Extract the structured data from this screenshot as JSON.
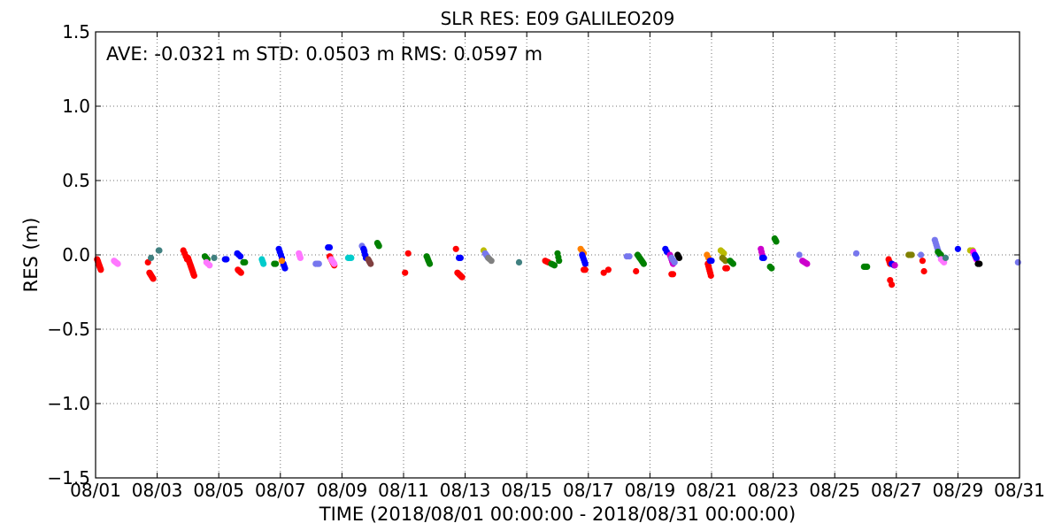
{
  "chart_data": {
    "type": "scatter",
    "title": "SLR RES: E09 GALILEO209",
    "stats_text": "AVE: -0.0321 m STD: 0.0503 m RMS: 0.0597 m",
    "xlabel": "TIME  (2018/08/01 00:00:00 - 2018/08/31 00:00:00)",
    "ylabel": "RES (m)",
    "xlim": [
      0,
      30
    ],
    "ylim": [
      -1.5,
      1.5
    ],
    "grid": true,
    "x_unit": "days",
    "x_ticks": [
      0,
      2,
      4,
      6,
      8,
      10,
      12,
      14,
      16,
      18,
      20,
      22,
      24,
      26,
      28,
      30
    ],
    "x_tick_labels": [
      "08/01",
      "08/03",
      "08/05",
      "08/07",
      "08/09",
      "08/11",
      "08/13",
      "08/15",
      "08/17",
      "08/19",
      "08/21",
      "08/23",
      "08/25",
      "08/27",
      "08/29",
      "08/31"
    ],
    "y_ticks": [
      -1.5,
      -1.0,
      -0.5,
      0.0,
      0.5,
      1.0,
      1.5
    ],
    "y_tick_labels": [
      "−1.5",
      "−1.0",
      "−0.5",
      "0.0",
      "0.5",
      "1.0",
      "1.5"
    ],
    "clusters": [
      {
        "x": 0.05,
        "dx": 0.12,
        "y": -0.03,
        "y2": -0.1,
        "n": 10,
        "color": "#ff0000"
      },
      {
        "x": 0.6,
        "dx": 0.12,
        "y": -0.04,
        "y2": -0.06,
        "n": 5,
        "color": "#ff77ff"
      },
      {
        "x": 1.75,
        "dx": 0.12,
        "y": -0.12,
        "y2": -0.16,
        "n": 8,
        "color": "#ff0000"
      },
      {
        "x": 1.7,
        "dx": 0.02,
        "y": -0.05,
        "n": 1,
        "color": "#ff0000"
      },
      {
        "x": 1.8,
        "dx": 0.02,
        "y": -0.02,
        "n": 1,
        "color": "#408080"
      },
      {
        "x": 2.05,
        "dx": 0.02,
        "y": 0.03,
        "n": 2,
        "color": "#408080"
      },
      {
        "x": 2.85,
        "dx": 0.12,
        "y": 0.03,
        "y2": -0.03,
        "n": 4,
        "color": "#ff0000"
      },
      {
        "x": 3.0,
        "dx": 0.2,
        "y": -0.02,
        "y2": -0.14,
        "n": 14,
        "color": "#ff0000"
      },
      {
        "x": 3.55,
        "dx": 0.08,
        "y": -0.01,
        "y2": -0.03,
        "n": 3,
        "color": "#008000"
      },
      {
        "x": 3.6,
        "dx": 0.1,
        "y": -0.05,
        "y2": -0.07,
        "n": 3,
        "color": "#ff77ff"
      },
      {
        "x": 3.85,
        "dx": 0.05,
        "y": -0.02,
        "n": 1,
        "color": "#408080"
      },
      {
        "x": 4.2,
        "dx": 0.05,
        "y": -0.03,
        "n": 2,
        "color": "#0000ff"
      },
      {
        "x": 4.6,
        "dx": 0.1,
        "y": 0.01,
        "y2": -0.01,
        "n": 3,
        "color": "#0000ff"
      },
      {
        "x": 4.62,
        "dx": 0.1,
        "y": -0.1,
        "y2": -0.12,
        "n": 4,
        "color": "#ff0000"
      },
      {
        "x": 4.8,
        "dx": 0.05,
        "y": -0.05,
        "n": 2,
        "color": "#008000"
      },
      {
        "x": 5.4,
        "dx": 0.05,
        "y": -0.03,
        "y2": -0.06,
        "n": 3,
        "color": "#00cccc"
      },
      {
        "x": 5.8,
        "dx": 0.05,
        "y": -0.06,
        "n": 2,
        "color": "#008000"
      },
      {
        "x": 5.95,
        "dx": 0.1,
        "y": 0.04,
        "y2": -0.02,
        "n": 4,
        "color": "#0000ff"
      },
      {
        "x": 6.1,
        "dx": 0.05,
        "y": -0.06,
        "y2": -0.09,
        "n": 3,
        "color": "#0000ff"
      },
      {
        "x": 6.05,
        "dx": 0.05,
        "y": -0.04,
        "n": 1,
        "color": "#ff8000"
      },
      {
        "x": 6.6,
        "dx": 0.05,
        "y": 0.01,
        "y2": -0.02,
        "n": 4,
        "color": "#ff77ff"
      },
      {
        "x": 7.15,
        "dx": 0.1,
        "y": -0.06,
        "n": 3,
        "color": "#7777ee"
      },
      {
        "x": 7.55,
        "dx": 0.05,
        "y": 0.05,
        "n": 2,
        "color": "#0000ff"
      },
      {
        "x": 7.6,
        "dx": 0.15,
        "y": -0.01,
        "y2": -0.07,
        "n": 8,
        "color": "#ff0000"
      },
      {
        "x": 7.65,
        "dx": 0.1,
        "y": -0.03,
        "y2": -0.06,
        "n": 5,
        "color": "#ff77ff"
      },
      {
        "x": 8.2,
        "dx": 0.1,
        "y": -0.02,
        "n": 3,
        "color": "#00cccc"
      },
      {
        "x": 8.65,
        "dx": 0.08,
        "y": 0.06,
        "y2": 0.03,
        "n": 3,
        "color": "#7777ee"
      },
      {
        "x": 8.7,
        "dx": 0.08,
        "y": 0.04,
        "y2": -0.02,
        "n": 4,
        "color": "#0000ff"
      },
      {
        "x": 8.85,
        "dx": 0.08,
        "y": -0.03,
        "y2": -0.06,
        "n": 4,
        "color": "#804040"
      },
      {
        "x": 9.15,
        "dx": 0.05,
        "y": 0.08,
        "y2": 0.06,
        "n": 3,
        "color": "#008000"
      },
      {
        "x": 10.05,
        "dx": 0.05,
        "y": -0.12,
        "n": 1,
        "color": "#ff0000"
      },
      {
        "x": 10.15,
        "dx": 0.05,
        "y": 0.01,
        "n": 1,
        "color": "#ff0000"
      },
      {
        "x": 10.75,
        "dx": 0.1,
        "y": -0.01,
        "y2": -0.06,
        "n": 5,
        "color": "#008000"
      },
      {
        "x": 11.7,
        "dx": 0.05,
        "y": 0.04,
        "n": 1,
        "color": "#ff0000"
      },
      {
        "x": 11.75,
        "dx": 0.15,
        "y": -0.12,
        "y2": -0.15,
        "n": 7,
        "color": "#ff0000"
      },
      {
        "x": 11.8,
        "dx": 0.05,
        "y": -0.02,
        "n": 2,
        "color": "#0000ff"
      },
      {
        "x": 12.6,
        "dx": 0.05,
        "y": 0.03,
        "n": 1,
        "color": "#bbbb00"
      },
      {
        "x": 12.65,
        "dx": 0.1,
        "y": 0.01,
        "y2": -0.02,
        "n": 4,
        "color": "#7777ee"
      },
      {
        "x": 12.75,
        "dx": 0.1,
        "y": -0.02,
        "y2": -0.04,
        "n": 3,
        "color": "#808080"
      },
      {
        "x": 13.75,
        "dx": 0.05,
        "y": -0.05,
        "n": 1,
        "color": "#408080"
      },
      {
        "x": 14.6,
        "dx": 0.1,
        "y": -0.04,
        "y2": -0.05,
        "n": 3,
        "color": "#ff0000"
      },
      {
        "x": 14.8,
        "dx": 0.1,
        "y": -0.06,
        "y2": -0.07,
        "n": 3,
        "color": "#008000"
      },
      {
        "x": 15.0,
        "dx": 0.05,
        "y": 0.01,
        "y2": -0.04,
        "n": 3,
        "color": "#008000"
      },
      {
        "x": 15.75,
        "dx": 0.1,
        "y": 0.04,
        "y2": 0.01,
        "n": 3,
        "color": "#ff8000"
      },
      {
        "x": 15.8,
        "dx": 0.1,
        "y": 0.0,
        "y2": -0.06,
        "n": 5,
        "color": "#0000ff"
      },
      {
        "x": 15.85,
        "dx": 0.05,
        "y": -0.1,
        "n": 2,
        "color": "#ff0000"
      },
      {
        "x": 16.5,
        "dx": 0.05,
        "y": -0.12,
        "n": 1,
        "color": "#ff0000"
      },
      {
        "x": 16.65,
        "dx": 0.05,
        "y": -0.1,
        "n": 1,
        "color": "#ff0000"
      },
      {
        "x": 17.25,
        "dx": 0.08,
        "y": -0.01,
        "n": 2,
        "color": "#7777ee"
      },
      {
        "x": 17.55,
        "dx": 0.05,
        "y": -0.11,
        "n": 1,
        "color": "#ff0000"
      },
      {
        "x": 17.6,
        "dx": 0.2,
        "y": 0.0,
        "y2": -0.06,
        "n": 7,
        "color": "#008000"
      },
      {
        "x": 18.5,
        "dx": 0.05,
        "y": 0.04,
        "y2": 0.02,
        "n": 2,
        "color": "#0000ff"
      },
      {
        "x": 18.65,
        "dx": 0.1,
        "y": 0.0,
        "y2": -0.06,
        "n": 5,
        "color": "#cc00cc"
      },
      {
        "x": 18.7,
        "dx": 0.1,
        "y": -0.02,
        "y2": -0.05,
        "n": 3,
        "color": "#7777ee"
      },
      {
        "x": 18.7,
        "dx": 0.05,
        "y": -0.13,
        "n": 2,
        "color": "#ff0000"
      },
      {
        "x": 18.9,
        "dx": 0.05,
        "y": 0.0,
        "y2": -0.02,
        "n": 3,
        "color": "#000000"
      },
      {
        "x": 19.85,
        "dx": 0.05,
        "y": 0.0,
        "y2": -0.02,
        "n": 2,
        "color": "#ff8000"
      },
      {
        "x": 19.88,
        "dx": 0.1,
        "y": -0.06,
        "y2": -0.14,
        "n": 6,
        "color": "#ff0000"
      },
      {
        "x": 19.95,
        "dx": 0.05,
        "y": -0.04,
        "n": 2,
        "color": "#0000ff"
      },
      {
        "x": 20.3,
        "dx": 0.1,
        "y": 0.03,
        "y2": 0.01,
        "n": 3,
        "color": "#bbbb00"
      },
      {
        "x": 20.35,
        "dx": 0.1,
        "y": -0.02,
        "y2": -0.04,
        "n": 3,
        "color": "#808000"
      },
      {
        "x": 20.45,
        "dx": 0.05,
        "y": -0.09,
        "n": 2,
        "color": "#ff0000"
      },
      {
        "x": 20.6,
        "dx": 0.1,
        "y": -0.04,
        "y2": -0.06,
        "n": 3,
        "color": "#008000"
      },
      {
        "x": 21.6,
        "dx": 0.05,
        "y": 0.04,
        "y2": 0.0,
        "n": 3,
        "color": "#cc00cc"
      },
      {
        "x": 21.65,
        "dx": 0.05,
        "y": -0.02,
        "n": 2,
        "color": "#0000ff"
      },
      {
        "x": 21.9,
        "dx": 0.05,
        "y": -0.08,
        "y2": -0.09,
        "n": 2,
        "color": "#008000"
      },
      {
        "x": 22.05,
        "dx": 0.05,
        "y": 0.11,
        "y2": 0.09,
        "n": 3,
        "color": "#008000"
      },
      {
        "x": 22.85,
        "dx": 0.05,
        "y": 0.0,
        "n": 1,
        "color": "#7777ee"
      },
      {
        "x": 22.95,
        "dx": 0.15,
        "y": -0.04,
        "y2": -0.06,
        "n": 5,
        "color": "#cc00cc"
      },
      {
        "x": 24.7,
        "dx": 0.05,
        "y": 0.01,
        "n": 1,
        "color": "#7777ee"
      },
      {
        "x": 24.95,
        "dx": 0.1,
        "y": -0.08,
        "n": 3,
        "color": "#008000"
      },
      {
        "x": 25.75,
        "dx": 0.05,
        "y": -0.03,
        "y2": -0.06,
        "n": 3,
        "color": "#ff0000"
      },
      {
        "x": 25.8,
        "dx": 0.05,
        "y": -0.17,
        "y2": -0.2,
        "n": 2,
        "color": "#ff0000"
      },
      {
        "x": 25.85,
        "dx": 0.08,
        "y": -0.06,
        "y2": -0.07,
        "n": 3,
        "color": "#0000ff"
      },
      {
        "x": 25.95,
        "dx": 0.05,
        "y": -0.07,
        "n": 1,
        "color": "#cc00cc"
      },
      {
        "x": 26.4,
        "dx": 0.1,
        "y": 0.0,
        "n": 3,
        "color": "#808000"
      },
      {
        "x": 26.85,
        "dx": 0.05,
        "y": -0.04,
        "n": 1,
        "color": "#ff0000"
      },
      {
        "x": 26.9,
        "dx": 0.05,
        "y": -0.11,
        "n": 1,
        "color": "#ff0000"
      },
      {
        "x": 26.8,
        "dx": 0.05,
        "y": 0.0,
        "n": 1,
        "color": "#7777ee"
      },
      {
        "x": 27.25,
        "dx": 0.15,
        "y": 0.1,
        "y2": 0.0,
        "n": 7,
        "color": "#7777ee"
      },
      {
        "x": 27.35,
        "dx": 0.1,
        "y": 0.02,
        "y2": 0.0,
        "n": 3,
        "color": "#008000"
      },
      {
        "x": 27.45,
        "dx": 0.1,
        "y": -0.03,
        "y2": -0.05,
        "n": 3,
        "color": "#ff77ff"
      },
      {
        "x": 27.6,
        "dx": 0.05,
        "y": -0.02,
        "n": 1,
        "color": "#408080"
      },
      {
        "x": 28.0,
        "dx": 0.05,
        "y": 0.04,
        "n": 1,
        "color": "#0000ff"
      },
      {
        "x": 28.4,
        "dx": 0.08,
        "y": 0.03,
        "n": 2,
        "color": "#bbbb00"
      },
      {
        "x": 28.5,
        "dx": 0.1,
        "y": 0.02,
        "y2": -0.03,
        "n": 4,
        "color": "#ff00ff"
      },
      {
        "x": 28.55,
        "dx": 0.05,
        "y": 0.0,
        "y2": -0.02,
        "n": 3,
        "color": "#0000ff"
      },
      {
        "x": 28.65,
        "dx": 0.05,
        "y": -0.06,
        "n": 2,
        "color": "#000000"
      },
      {
        "x": 29.95,
        "dx": 0.03,
        "y": -0.05,
        "n": 1,
        "color": "#7777ee"
      }
    ]
  }
}
